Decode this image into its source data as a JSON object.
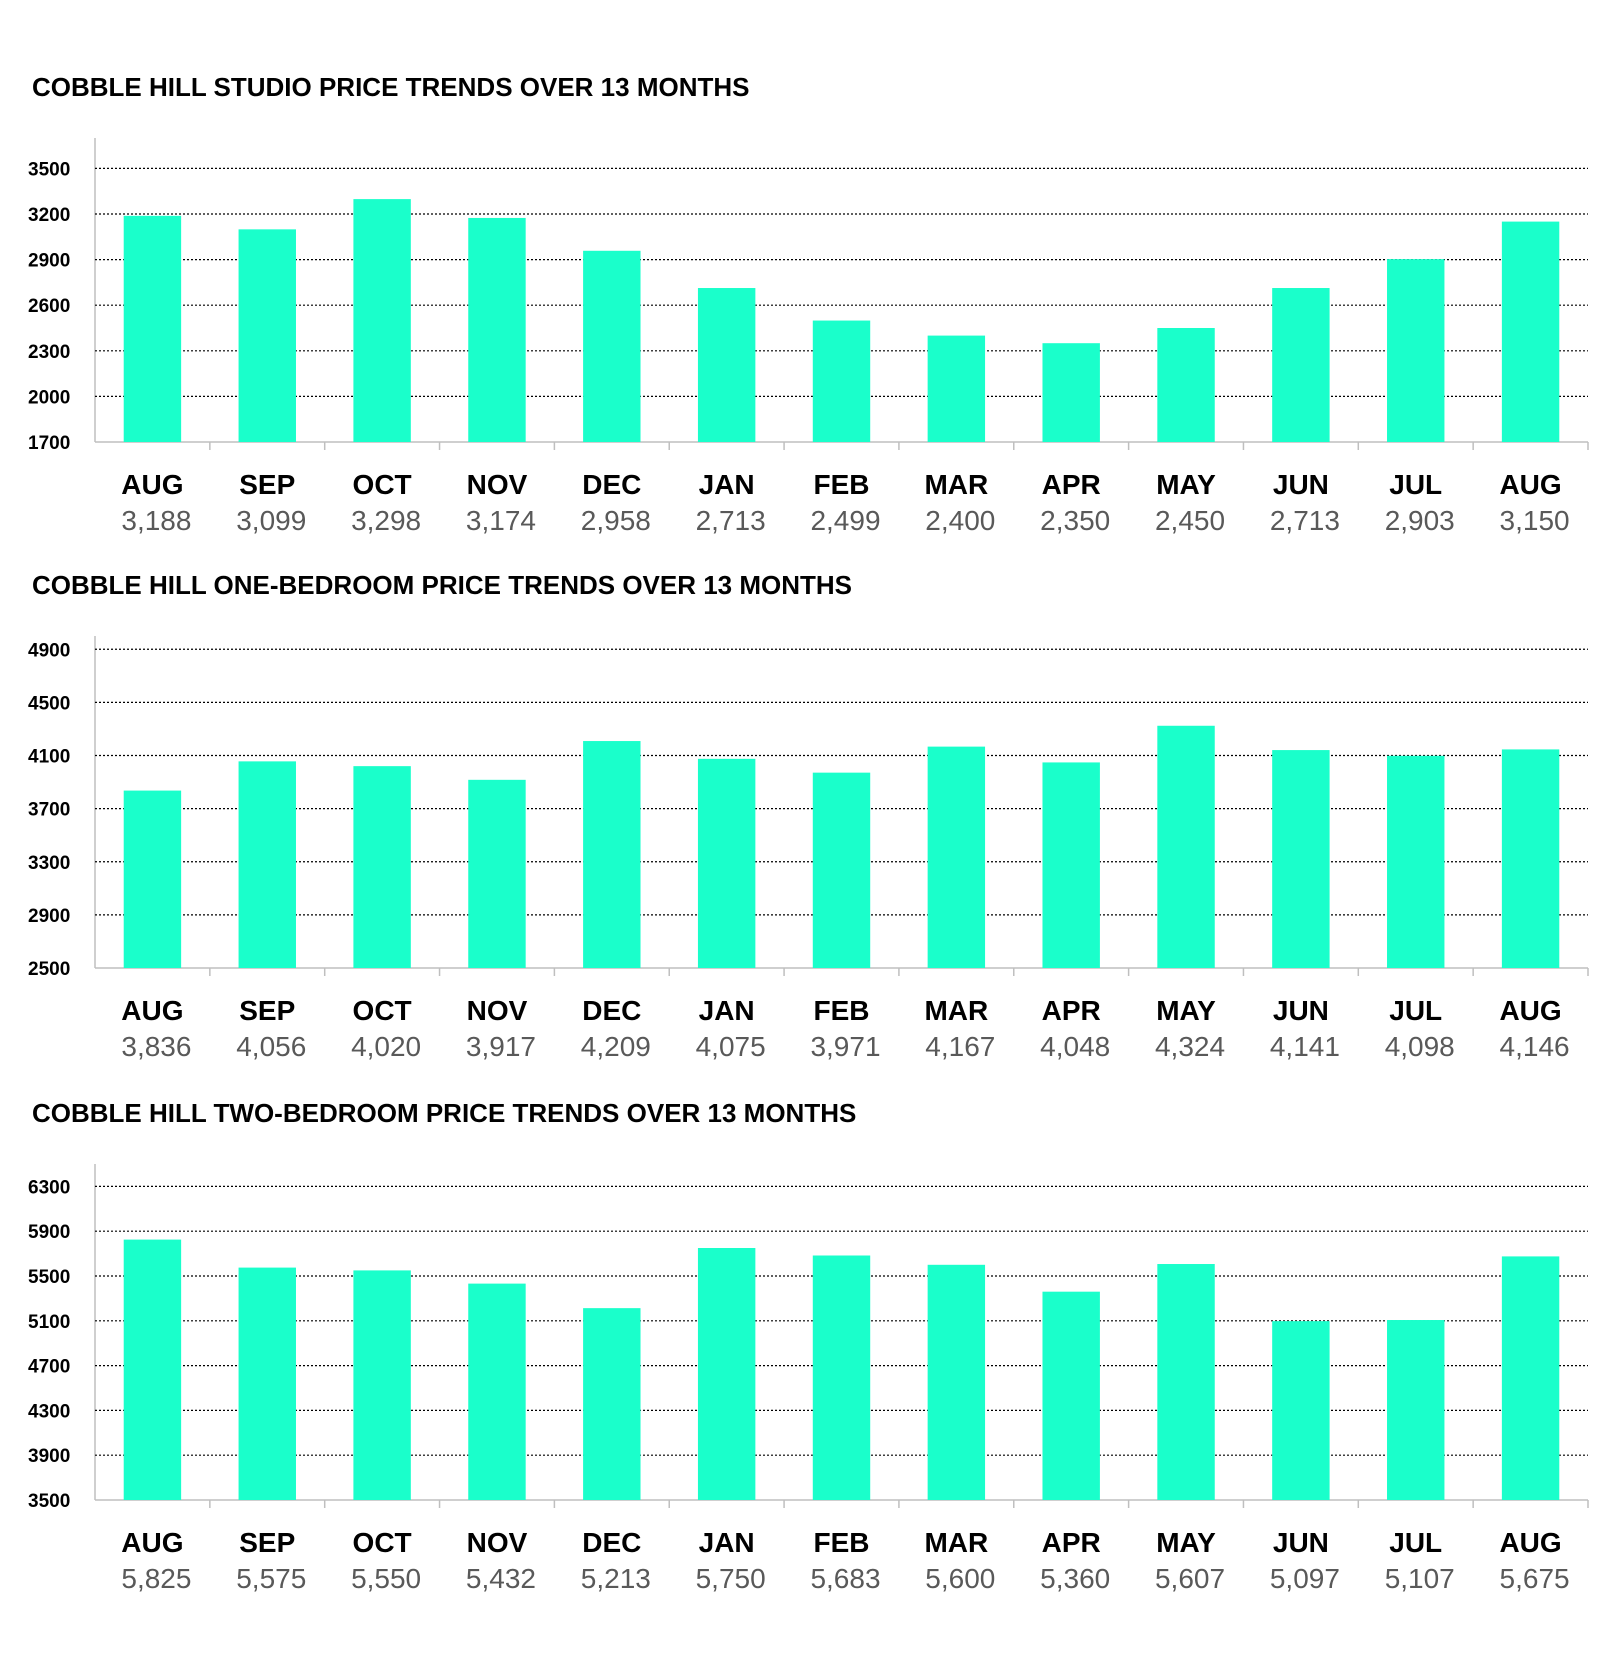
{
  "colors": {
    "bar": "#1affcb",
    "grid": "#000000",
    "axis": "#bfbfbf",
    "value_text": "#595959"
  },
  "chart_data": [
    {
      "type": "bar",
      "title": "COBBLE HILL STUDIO PRICE TRENDS OVER 13 MONTHS",
      "categories": [
        "AUG",
        "SEP",
        "OCT",
        "NOV",
        "DEC",
        "JAN",
        "FEB",
        "MAR",
        "APR",
        "MAY",
        "JUN",
        "JUL",
        "AUG"
      ],
      "values": [
        3188,
        3099,
        3298,
        3174,
        2958,
        2713,
        2499,
        2400,
        2350,
        2450,
        2713,
        2903,
        3150
      ],
      "value_labels": [
        "3,188",
        "3,099",
        "3,298",
        "3,174",
        "2,958",
        "2,713",
        "2,499",
        "2,400",
        "2,350",
        "2,450",
        "2,713",
        "2,903",
        "3,150"
      ],
      "yticks": [
        1700,
        2000,
        2300,
        2600,
        2900,
        3200,
        3500
      ],
      "ylim": [
        1700,
        3700
      ],
      "grid": true,
      "legend": false
    },
    {
      "type": "bar",
      "title": "COBBLE HILL ONE-BEDROOM PRICE TRENDS OVER 13 MONTHS",
      "categories": [
        "AUG",
        "SEP",
        "OCT",
        "NOV",
        "DEC",
        "JAN",
        "FEB",
        "MAR",
        "APR",
        "MAY",
        "JUN",
        "JUL",
        "AUG"
      ],
      "values": [
        3836,
        4056,
        4020,
        3917,
        4209,
        4075,
        3971,
        4167,
        4048,
        4324,
        4141,
        4098,
        4146
      ],
      "value_labels": [
        "3,836",
        "4,056",
        "4,020",
        "3,917",
        "4,209",
        "4,075",
        "3,971",
        "4,167",
        "4,048",
        "4,324",
        "4,141",
        "4,098",
        "4,146"
      ],
      "yticks": [
        2500,
        2900,
        3300,
        3700,
        4100,
        4500,
        4900
      ],
      "ylim": [
        2500,
        5000
      ],
      "grid": true,
      "legend": false
    },
    {
      "type": "bar",
      "title": "COBBLE HILL TWO-BEDROOM PRICE TRENDS OVER 13 MONTHS",
      "categories": [
        "AUG",
        "SEP",
        "OCT",
        "NOV",
        "DEC",
        "JAN",
        "FEB",
        "MAR",
        "APR",
        "MAY",
        "JUN",
        "JUL",
        "AUG"
      ],
      "values": [
        5825,
        5575,
        5550,
        5432,
        5213,
        5750,
        5683,
        5600,
        5360,
        5607,
        5097,
        5107,
        5675
      ],
      "value_labels": [
        "5,825",
        "5,575",
        "5,550",
        "5,432",
        "5,213",
        "5,750",
        "5,683",
        "5,600",
        "5,360",
        "5,607",
        "5,097",
        "5,107",
        "5,675"
      ],
      "yticks": [
        3500,
        3900,
        4300,
        4700,
        5100,
        5500,
        5900,
        6300
      ],
      "ylim": [
        3500,
        6500
      ],
      "grid": true,
      "legend": false
    }
  ]
}
